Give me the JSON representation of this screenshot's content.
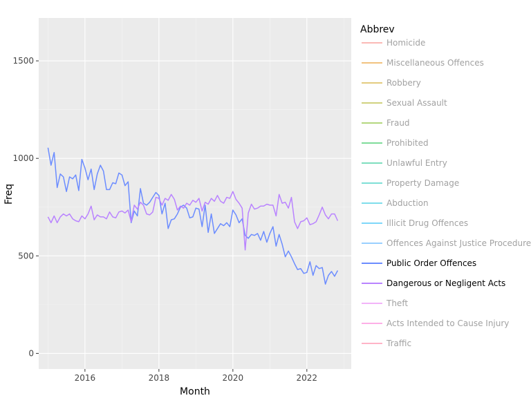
{
  "chart_data": {
    "type": "line",
    "xlabel": "Month",
    "ylabel": "Freq",
    "xlim": [
      2014.75,
      2023.2
    ],
    "ylim": [
      -80,
      1720
    ],
    "x_ticks": [
      2016,
      2018,
      2020,
      2022
    ],
    "x_tick_labels": [
      "2016",
      "2018",
      "2020",
      "2022"
    ],
    "y_ticks": [
      0,
      500,
      1000,
      1500
    ],
    "y_tick_labels": [
      "0",
      "500",
      "1000",
      "1500"
    ],
    "grid": true,
    "legend_title": "Abbrev",
    "legend_position": "right",
    "legend": [
      {
        "name": "Homicide",
        "color": "#F8766D",
        "active": false
      },
      {
        "name": "Miscellaneous Offences",
        "color": "#E58700",
        "active": false
      },
      {
        "name": "Robbery",
        "color": "#C99800",
        "active": false
      },
      {
        "name": "Sexual Assault",
        "color": "#A3A500",
        "active": false
      },
      {
        "name": "Fraud",
        "color": "#6BB100",
        "active": false
      },
      {
        "name": "Prohibited",
        "color": "#00BA38",
        "active": false
      },
      {
        "name": "Unlawful Entry",
        "color": "#00BF7D",
        "active": false
      },
      {
        "name": "Property Damage",
        "color": "#00C0AF",
        "active": false
      },
      {
        "name": "Abduction",
        "color": "#00BCD8",
        "active": false
      },
      {
        "name": "Illicit Drug Offences",
        "color": "#00B0F6",
        "active": false
      },
      {
        "name": "Offences Against Justice Procedures",
        "color": "#35A2FF",
        "active": false
      },
      {
        "name": "Public Order Offences",
        "color": "#6B8CFF",
        "active": true
      },
      {
        "name": "Dangerous or Negligent Acts",
        "color": "#B983FF",
        "active": true
      },
      {
        "name": "Theft",
        "color": "#E76BF3",
        "active": false
      },
      {
        "name": "Acts Intended to Cause Injury",
        "color": "#FD61D1",
        "active": false
      },
      {
        "name": "Traffic",
        "color": "#FF6C91",
        "active": false
      }
    ],
    "series": [
      {
        "name": "Public Order Offences",
        "color": "#6B8CFF",
        "x": [
          2015.0,
          2015.083,
          2015.167,
          2015.25,
          2015.333,
          2015.417,
          2015.5,
          2015.583,
          2015.667,
          2015.75,
          2015.833,
          2015.917,
          2016.0,
          2016.083,
          2016.167,
          2016.25,
          2016.333,
          2016.417,
          2016.5,
          2016.583,
          2016.667,
          2016.75,
          2016.833,
          2016.917,
          2017.0,
          2017.083,
          2017.167,
          2017.25,
          2017.333,
          2017.417,
          2017.5,
          2017.583,
          2017.667,
          2017.75,
          2017.833,
          2017.917,
          2018.0,
          2018.083,
          2018.167,
          2018.25,
          2018.333,
          2018.417,
          2018.5,
          2018.583,
          2018.667,
          2018.75,
          2018.833,
          2018.917,
          2019.0,
          2019.083,
          2019.167,
          2019.25,
          2019.333,
          2019.417,
          2019.5,
          2019.583,
          2019.667,
          2019.75,
          2019.833,
          2019.917,
          2020.0,
          2020.083,
          2020.167,
          2020.25,
          2020.333,
          2020.417,
          2020.5,
          2020.583,
          2020.667,
          2020.75,
          2020.833,
          2020.917,
          2021.0,
          2021.083,
          2021.167,
          2021.25,
          2021.333,
          2021.417,
          2021.5,
          2021.583,
          2021.667,
          2021.75,
          2021.833,
          2021.917,
          2022.0,
          2022.083,
          2022.167,
          2022.25,
          2022.333,
          2022.417,
          2022.5,
          2022.583,
          2022.667,
          2022.75,
          2022.833
        ],
        "values": [
          1055,
          965,
          1030,
          850,
          920,
          905,
          830,
          905,
          895,
          915,
          835,
          995,
          950,
          890,
          945,
          840,
          920,
          965,
          935,
          840,
          840,
          875,
          870,
          925,
          915,
          860,
          880,
          670,
          730,
          705,
          845,
          770,
          760,
          775,
          800,
          825,
          810,
          715,
          770,
          640,
          685,
          690,
          715,
          750,
          760,
          745,
          695,
          700,
          745,
          740,
          650,
          760,
          620,
          715,
          615,
          640,
          665,
          655,
          670,
          650,
          735,
          710,
          670,
          690,
          605,
          590,
          610,
          605,
          615,
          580,
          625,
          570,
          615,
          650,
          550,
          610,
          560,
          495,
          525,
          495,
          460,
          430,
          435,
          410,
          415,
          470,
          400,
          450,
          435,
          440,
          355,
          400,
          420,
          395,
          425
        ]
      },
      {
        "name": "Dangerous or Negligent Acts",
        "color": "#B983FF",
        "x": [
          2015.0,
          2015.083,
          2015.167,
          2015.25,
          2015.333,
          2015.417,
          2015.5,
          2015.583,
          2015.667,
          2015.75,
          2015.833,
          2015.917,
          2016.0,
          2016.083,
          2016.167,
          2016.25,
          2016.333,
          2016.417,
          2016.5,
          2016.583,
          2016.667,
          2016.75,
          2016.833,
          2016.917,
          2017.0,
          2017.083,
          2017.167,
          2017.25,
          2017.333,
          2017.417,
          2017.5,
          2017.583,
          2017.667,
          2017.75,
          2017.833,
          2017.917,
          2018.0,
          2018.083,
          2018.167,
          2018.25,
          2018.333,
          2018.417,
          2018.5,
          2018.583,
          2018.667,
          2018.75,
          2018.833,
          2018.917,
          2019.0,
          2019.083,
          2019.167,
          2019.25,
          2019.333,
          2019.417,
          2019.5,
          2019.583,
          2019.667,
          2019.75,
          2019.833,
          2019.917,
          2020.0,
          2020.083,
          2020.167,
          2020.25,
          2020.333,
          2020.417,
          2020.5,
          2020.583,
          2020.667,
          2020.75,
          2020.833,
          2020.917,
          2021.0,
          2021.083,
          2021.167,
          2021.25,
          2021.333,
          2021.417,
          2021.5,
          2021.583,
          2021.667,
          2021.75,
          2021.833,
          2021.917,
          2022.0,
          2022.083,
          2022.167,
          2022.25,
          2022.333,
          2022.417,
          2022.5,
          2022.583,
          2022.667,
          2022.75,
          2022.833
        ],
        "values": [
          700,
          670,
          705,
          670,
          700,
          715,
          705,
          715,
          690,
          680,
          675,
          705,
          690,
          715,
          755,
          685,
          710,
          700,
          700,
          690,
          725,
          700,
          695,
          725,
          730,
          720,
          735,
          675,
          760,
          740,
          775,
          760,
          715,
          710,
          725,
          800,
          795,
          760,
          795,
          785,
          815,
          790,
          735,
          755,
          745,
          770,
          760,
          785,
          775,
          795,
          730,
          775,
          765,
          795,
          780,
          810,
          780,
          770,
          800,
          795,
          830,
          790,
          770,
          745,
          530,
          720,
          765,
          740,
          745,
          755,
          755,
          765,
          760,
          760,
          705,
          815,
          770,
          775,
          745,
          800,
          675,
          640,
          675,
          680,
          695,
          660,
          665,
          675,
          710,
          750,
          710,
          690,
          715,
          715,
          680
        ]
      }
    ]
  }
}
